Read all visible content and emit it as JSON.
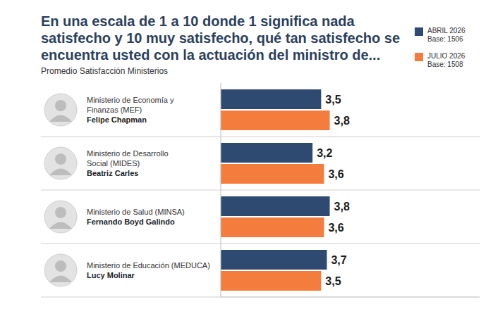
{
  "chart_data": {
    "type": "bar",
    "orientation": "horizontal",
    "title": "En una escala de 1 a 10 donde 1 significa nada satisfecho y 10 muy satisfecho, qué tan satisfecho se encuentra usted con la actuación del ministro de...",
    "subtitle": "Promedio Satisfacción Ministerios",
    "categories": [
      "Ministerio de Economía y Finanzas (MEF)",
      "Ministerio de Desarrollo Social (MIDES)",
      "Ministerio de Salud (MINSA)",
      "Ministerio de Educación (MEDUCA)"
    ],
    "ministers": [
      "Felipe Chapman",
      "Beatriz Carles",
      "Fernando Boyd Galindo",
      "Lucy Molinar"
    ],
    "series": [
      {
        "name": "ABRIL 2026",
        "base_label": "Base: 1506",
        "color": "#2e4a70",
        "values": [
          3.5,
          3.2,
          3.8,
          3.7
        ],
        "value_labels": [
          "3,5",
          "3,2",
          "3,8",
          "3,7"
        ]
      },
      {
        "name": "JULIO 2026",
        "base_label": "Base: 1508",
        "color": "#f47c3c",
        "values": [
          3.8,
          3.6,
          3.6,
          3.5
        ],
        "value_labels": [
          "3,8",
          "3,6",
          "3,6",
          "3,5"
        ]
      }
    ],
    "xlim": [
      0,
      9
    ],
    "xticks": [],
    "tick_labels": "y",
    "data_labels": true,
    "legend": "top-right"
  }
}
